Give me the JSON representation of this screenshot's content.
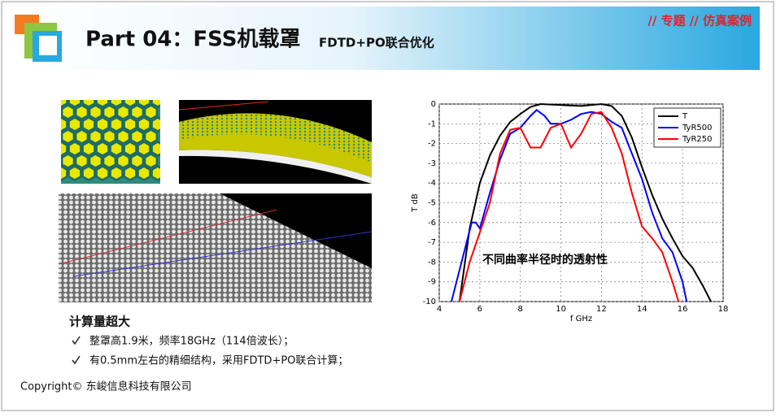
{
  "header": {
    "title": "Part 04：FSS机载罩",
    "subtitle": "FDTD+PO联合优化",
    "tag": "// 专题 // 仿真案例"
  },
  "content": {
    "heading": "计算量超大",
    "bullets": [
      "整罩高1.9米，频率18GHz（114倍波长）；",
      "有0.5mm左右的精细结构，采用FDTD+PO联合计算；"
    ]
  },
  "footer": {
    "copyright": "Copyright© 东峻信息科技有限公司"
  },
  "chart_data": {
    "type": "line",
    "xlabel": "f GHz",
    "ylabel": "T dB",
    "annotation": "不同曲率半径时的透射性",
    "xlim": [
      4,
      18
    ],
    "ylim": [
      -10,
      0
    ],
    "xticks": [
      4,
      6,
      8,
      10,
      12,
      14,
      16,
      18
    ],
    "yticks": [
      0,
      -1,
      -2,
      -3,
      -4,
      -5,
      -6,
      -7,
      -8,
      -9,
      -10
    ],
    "grid": true,
    "legend": "top-right",
    "series": [
      {
        "name": "T",
        "color": "#000000",
        "x": [
          5,
          5.5,
          6,
          6.5,
          7,
          7.5,
          8,
          8.5,
          9,
          10,
          11,
          12,
          12.5,
          13,
          13.5,
          14,
          14.5,
          15,
          15.5,
          16,
          16.5,
          17,
          17.4
        ],
        "values": [
          -10,
          -6.3,
          -4.0,
          -2.6,
          -1.6,
          -0.9,
          -0.5,
          -0.15,
          0,
          -0.05,
          -0.1,
          0,
          -0.1,
          -0.6,
          -1.7,
          -3.2,
          -4.6,
          -5.8,
          -6.8,
          -7.7,
          -8.3,
          -9.2,
          -10
        ]
      },
      {
        "name": "TyR500",
        "color": "#0000ff",
        "x": [
          4.6,
          5.6,
          5.8,
          6,
          6.5,
          7,
          7.5,
          8,
          8.5,
          8.8,
          9.2,
          9.5,
          10,
          10.5,
          11,
          11.5,
          12,
          12.5,
          13,
          13.5,
          14,
          14.5,
          15,
          15.5,
          16,
          16.2
        ],
        "values": [
          -10,
          -6,
          -6,
          -6.3,
          -4.5,
          -2.8,
          -1.5,
          -1.2,
          -0.6,
          -0.3,
          -0.6,
          -1.0,
          -1.0,
          -0.8,
          -0.5,
          -0.4,
          -0.5,
          -0.9,
          -1.2,
          -2.5,
          -3.8,
          -5.5,
          -6.8,
          -7.5,
          -9,
          -10
        ]
      },
      {
        "name": "TyR250",
        "color": "#ff0000",
        "x": [
          5,
          5.5,
          6,
          6.5,
          7,
          7.5,
          8,
          8.5,
          9,
          9.5,
          10,
          10.5,
          11,
          11.5,
          12,
          12.5,
          13,
          13.5,
          14,
          14.5,
          15,
          15.5,
          15.8
        ],
        "values": [
          -10,
          -8,
          -6.5,
          -5,
          -2.5,
          -1.3,
          -1.2,
          -2.2,
          -2.2,
          -1.2,
          -1.0,
          -2.2,
          -1.5,
          -0.5,
          -0.4,
          -1.2,
          -2.5,
          -4.5,
          -6.2,
          -6.8,
          -7.5,
          -9,
          -10
        ]
      }
    ]
  }
}
